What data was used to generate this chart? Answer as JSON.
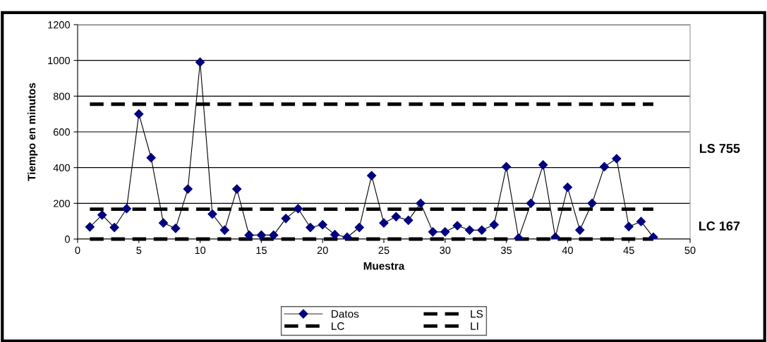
{
  "chart_data": {
    "type": "line",
    "xlabel": "Muestra",
    "ylabel": "Tiempo en minutos",
    "x": [
      1,
      2,
      3,
      4,
      5,
      6,
      7,
      8,
      9,
      10,
      11,
      12,
      13,
      14,
      15,
      16,
      17,
      18,
      19,
      20,
      21,
      22,
      23,
      24,
      25,
      26,
      27,
      28,
      29,
      30,
      31,
      32,
      33,
      34,
      35,
      36,
      37,
      38,
      39,
      40,
      41,
      42,
      43,
      44,
      45,
      46,
      47
    ],
    "series": [
      {
        "name": "Datos",
        "color": "#000080",
        "marker": "diamond",
        "line_style": "solid",
        "values": [
          68,
          135,
          65,
          170,
          700,
          455,
          90,
          60,
          280,
          990,
          140,
          50,
          280,
          22,
          22,
          22,
          115,
          170,
          65,
          80,
          25,
          10,
          65,
          355,
          90,
          125,
          105,
          200,
          40,
          40,
          75,
          50,
          50,
          80,
          405,
          5,
          200,
          415,
          10,
          290,
          50,
          200,
          405,
          450,
          70,
          98,
          10
        ]
      },
      {
        "name": "LS",
        "color": "#000000",
        "marker": "none",
        "line_style": "dashed",
        "values": [
          755,
          755,
          755,
          755,
          755,
          755,
          755,
          755,
          755,
          755,
          755,
          755,
          755,
          755,
          755,
          755,
          755,
          755,
          755,
          755,
          755,
          755,
          755,
          755,
          755,
          755,
          755,
          755,
          755,
          755,
          755,
          755,
          755,
          755,
          755,
          755,
          755,
          755,
          755,
          755,
          755,
          755,
          755,
          755,
          755,
          755,
          755
        ]
      },
      {
        "name": "LC",
        "color": "#000000",
        "marker": "none",
        "line_style": "dashed",
        "values": [
          167,
          167,
          167,
          167,
          167,
          167,
          167,
          167,
          167,
          167,
          167,
          167,
          167,
          167,
          167,
          167,
          167,
          167,
          167,
          167,
          167,
          167,
          167,
          167,
          167,
          167,
          167,
          167,
          167,
          167,
          167,
          167,
          167,
          167,
          167,
          167,
          167,
          167,
          167,
          167,
          167,
          167,
          167,
          167,
          167,
          167,
          167
        ]
      },
      {
        "name": "LI",
        "color": "#000000",
        "marker": "none",
        "line_style": "dashed",
        "values": [
          0,
          0,
          0,
          0,
          0,
          0,
          0,
          0,
          0,
          0,
          0,
          0,
          0,
          0,
          0,
          0,
          0,
          0,
          0,
          0,
          0,
          0,
          0,
          0,
          0,
          0,
          0,
          0,
          0,
          0,
          0,
          0,
          0,
          0,
          0,
          0,
          0,
          0,
          0,
          0,
          0,
          0,
          0,
          0,
          0,
          0,
          0
        ]
      }
    ],
    "annotations": [
      "LS 755",
      "LC 167"
    ],
    "xlim": [
      0,
      50
    ],
    "xticks": [
      0,
      5,
      10,
      15,
      20,
      25,
      30,
      35,
      40,
      45,
      50
    ],
    "ylim": [
      0,
      1200
    ],
    "yticks": [
      0,
      200,
      400,
      600,
      800,
      1000,
      1200
    ],
    "grid": "y",
    "legend": "bottom"
  }
}
